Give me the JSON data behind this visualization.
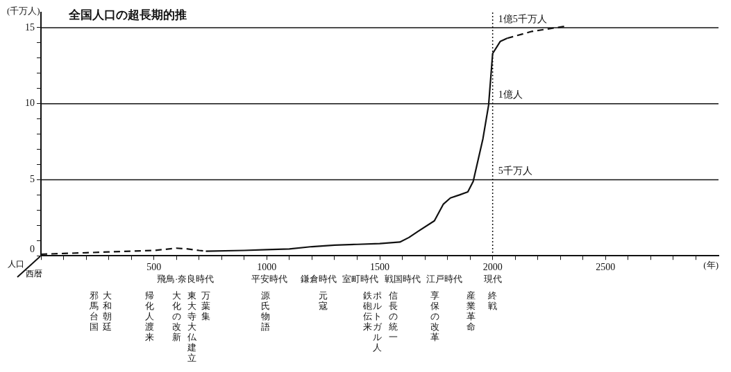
{
  "chart_data": {
    "type": "line",
    "title": "全国人口の超長期的推",
    "xlabel": "(年)",
    "ylabel": "(千万人)",
    "xlim": [
      0,
      3000
    ],
    "xticks": [
      {
        "value": 0,
        "label": null
      },
      {
        "value": 100,
        "label": null
      },
      {
        "value": 200,
        "label": null
      },
      {
        "value": 300,
        "label": null
      },
      {
        "value": 400,
        "label": null
      },
      500,
      {
        "value": 600,
        "label": null
      },
      {
        "value": 700,
        "label": null
      },
      {
        "value": 800,
        "label": null
      },
      {
        "value": 900,
        "label": null
      },
      1000,
      {
        "value": 1100,
        "label": null
      },
      {
        "value": 1200,
        "label": null
      },
      {
        "value": 1300,
        "label": null
      },
      {
        "value": 1400,
        "label": null
      },
      1500,
      {
        "value": 1600,
        "label": null
      },
      {
        "value": 1700,
        "label": null
      },
      {
        "value": 1800,
        "label": null
      },
      {
        "value": 1900,
        "label": null
      },
      2000,
      {
        "value": 2100,
        "label": null
      },
      {
        "value": 2200,
        "label": null
      },
      {
        "value": 2300,
        "label": null
      },
      {
        "value": 2400,
        "label": null
      },
      2500,
      {
        "value": 2600,
        "label": null
      },
      {
        "value": 2700,
        "label": null
      },
      {
        "value": 2800,
        "label": null
      },
      {
        "value": 2900,
        "label": null
      }
    ],
    "ylim": [
      0,
      16
    ],
    "yticks": [
      0,
      {
        "value": 1,
        "label": null
      },
      {
        "value": 2,
        "label": null
      },
      {
        "value": 3,
        "label": null
      },
      {
        "value": 4,
        "label": null
      },
      5,
      {
        "value": 6,
        "label": null
      },
      {
        "value": 7,
        "label": null
      },
      {
        "value": 8,
        "label": null
      },
      {
        "value": 9,
        "label": null
      },
      10,
      {
        "value": 11,
        "label": null
      },
      {
        "value": 12,
        "label": null
      },
      {
        "value": 13,
        "label": null
      },
      {
        "value": 14,
        "label": null
      },
      15
    ],
    "grid": false,
    "legend": false,
    "marker": "none",
    "series": [
      {
        "color": "#111111",
        "line_style": "dashed",
        "x": [
          0,
          100,
          200,
          300,
          400,
          500,
          600,
          650,
          700,
          730
        ],
        "values": [
          0.1,
          0.15,
          0.2,
          0.25,
          0.3,
          0.35,
          0.5,
          0.45,
          0.35,
          0.3
        ]
      },
      {
        "color": "#111111",
        "line_style": "solid",
        "x": [
          730,
          900,
          1000,
          1100,
          1200,
          1300,
          1400,
          1500,
          1589,
          1629,
          1669,
          1742,
          1782,
          1813,
          1853,
          1890,
          1914,
          1957,
          1982,
          2000,
          2034,
          2064
        ],
        "values": [
          0.3,
          0.35,
          0.4,
          0.45,
          0.6,
          0.7,
          0.75,
          0.8,
          0.9,
          1.2,
          1.6,
          2.3,
          3.4,
          3.8,
          4.0,
          4.2,
          4.9,
          7.7,
          9.9,
          13.3,
          14.1,
          14.3
        ]
      },
      {
        "color": "#111111",
        "line_style": "dashed",
        "x": [
          2064,
          2172,
          2325
        ],
        "values": [
          14.3,
          14.75,
          15.1
        ]
      }
    ],
    "ref_lines": [
      {
        "axis": "y",
        "value": 5,
        "label": "5千万人"
      },
      {
        "axis": "y",
        "value": 10,
        "label": "1億人"
      },
      {
        "axis": "y",
        "value": 15,
        "label": "1億5千万人"
      },
      {
        "axis": "x",
        "value": 2000,
        "line_style": "dotted"
      }
    ],
    "annotations": [
      "人口",
      "西暦",
      "飛鳥·奈良時代",
      "平安時代",
      "鎌倉時代",
      "室町時代",
      "戦国時代",
      "江戸時代",
      "現代",
      "邪馬台国",
      "大和朝廷",
      "帰化人渡来",
      "大化の改新",
      "東大寺大仏建立",
      "万葉集",
      "源氏物語",
      "元寇",
      "鉄砲伝来",
      "ポルトガル人",
      "信長の統一",
      "享保の改革",
      "産業革命",
      "終戦"
    ]
  }
}
